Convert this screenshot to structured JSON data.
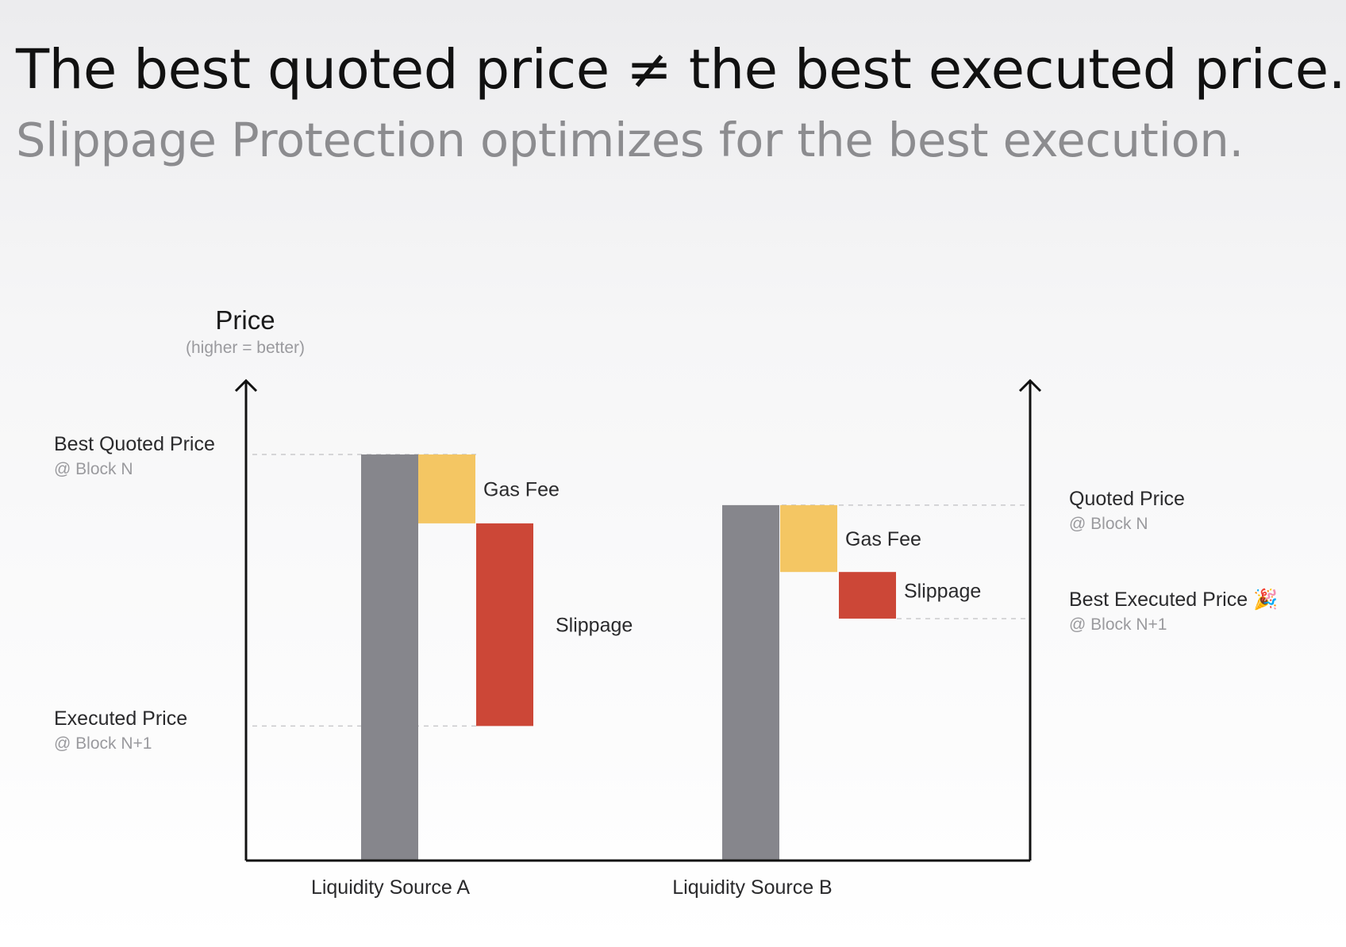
{
  "headline": "The best quoted price ≠ the best executed price.",
  "subhead": "Slippage Protection optimizes for the best execution.",
  "colors": {
    "base": "#86868c",
    "gas_fee": "#f4c663",
    "slippage": "#cc4737",
    "axis": "#111111",
    "muted": "#9a9a9e",
    "label": "#2a2a2c"
  },
  "chart_data": {
    "type": "bar",
    "subtype": "waterfall",
    "y_axis": {
      "label": "Price",
      "sublabel": "(higher = better)",
      "ticks_shown": false,
      "ylim": [
        0,
        100
      ]
    },
    "categories": [
      "Liquidity Source A",
      "Liquidity Source B"
    ],
    "segments": [
      {
        "category": "Liquidity Source A",
        "quoted_price": 100,
        "gas_fee": 17,
        "slippage": 50,
        "executed_price": 33,
        "gas_fee_label": "Gas Fee",
        "slippage_label": "Slippage"
      },
      {
        "category": "Liquidity Source B",
        "quoted_price": 87.5,
        "gas_fee": 16.5,
        "slippage": 11.5,
        "executed_price": 59.5,
        "gas_fee_label": "Gas Fee",
        "slippage_label": "Slippage"
      }
    ],
    "reference_lines": [
      {
        "title": "Best Quoted Price",
        "subtitle": "@ Block N",
        "value": 100,
        "side": "left"
      },
      {
        "title": "Executed Price",
        "subtitle": "@ Block N+1",
        "value": 33,
        "side": "left"
      },
      {
        "title": "Quoted Price",
        "subtitle": "@ Block N",
        "value": 87.5,
        "side": "right"
      },
      {
        "title": "Best Executed Price 🎉",
        "subtitle": "@ Block N+1",
        "value": 59.5,
        "side": "right"
      }
    ],
    "grid": false,
    "legend": "none"
  }
}
